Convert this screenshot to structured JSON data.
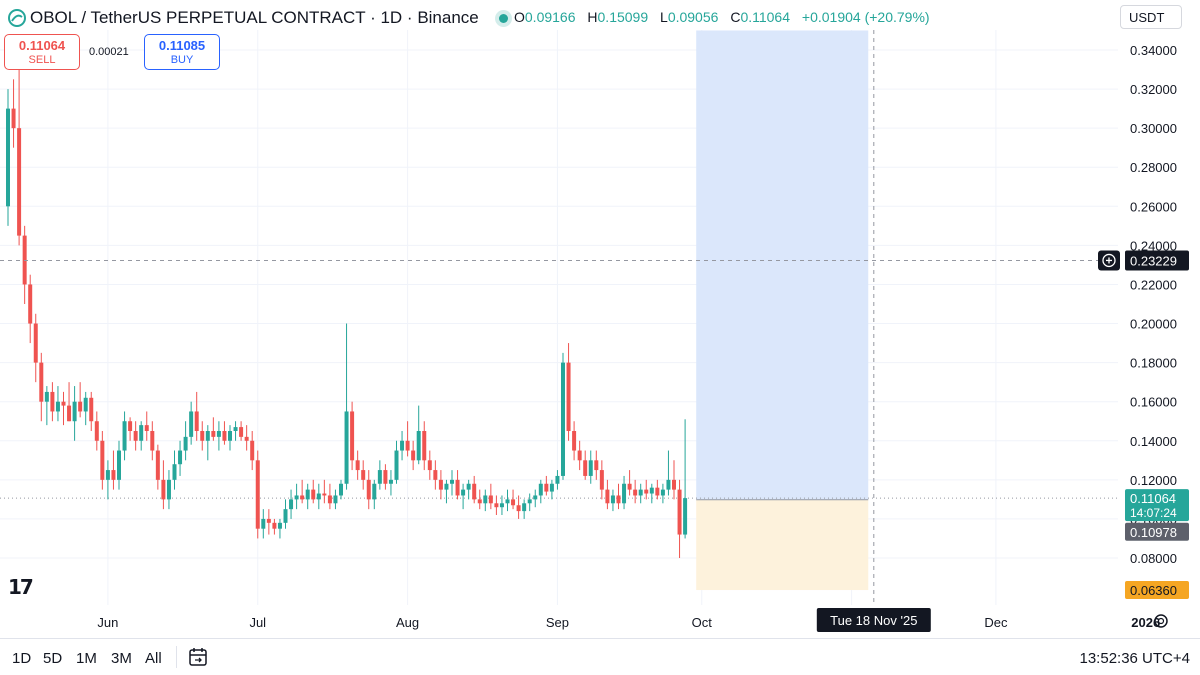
{
  "header": {
    "title": "OBOL / TetherUS PERPETUAL CONTRACT · 1D · Binance",
    "ohlc": {
      "o_label": "O",
      "o": "0.09166",
      "h_label": "H",
      "h": "0.15099",
      "l_label": "L",
      "l": "0.09056",
      "c_label": "C",
      "c": "0.11064",
      "change": "+0.01904 (+20.79%)"
    },
    "currency": "USDT"
  },
  "trade": {
    "sell_price": "0.11064",
    "sell_label": "SELL",
    "spread": "0.00021",
    "buy_price": "0.11085",
    "buy_label": "BUY"
  },
  "timeframes": [
    "1D",
    "5D",
    "1M",
    "3M",
    "All"
  ],
  "clock": "13:52:36 UTC+4",
  "colors": {
    "up": "#26a69a",
    "down": "#ef5350",
    "profit_zone": "#dbe7fb",
    "loss_zone": "#fdf2dc",
    "brand": "#131722"
  },
  "chart_data": {
    "type": "candlestick",
    "ylim": [
      0.06,
      0.35
    ],
    "y_ticks": [
      "0.08000",
      "0.10000",
      "0.12000",
      "0.14000",
      "0.16000",
      "0.18000",
      "0.20000",
      "0.22000",
      "0.24000",
      "0.26000",
      "0.28000",
      "0.30000",
      "0.32000",
      "0.34000"
    ],
    "x_ticks": [
      {
        "label": "Jun",
        "i": 18
      },
      {
        "label": "Jul",
        "i": 45
      },
      {
        "label": "Aug",
        "i": 72
      },
      {
        "label": "Sep",
        "i": 99
      },
      {
        "label": "Oct",
        "i": 125
      },
      {
        "label": "Nov",
        "i": 152
      },
      {
        "label": "Dec",
        "i": 178
      },
      {
        "label": "2026",
        "i": 205
      }
    ],
    "candles": [
      [
        0.26,
        0.32,
        0.25,
        0.31
      ],
      [
        0.31,
        0.325,
        0.29,
        0.3
      ],
      [
        0.3,
        0.33,
        0.24,
        0.245
      ],
      [
        0.245,
        0.25,
        0.21,
        0.22
      ],
      [
        0.22,
        0.225,
        0.19,
        0.2
      ],
      [
        0.2,
        0.205,
        0.17,
        0.18
      ],
      [
        0.18,
        0.185,
        0.15,
        0.16
      ],
      [
        0.16,
        0.168,
        0.148,
        0.165
      ],
      [
        0.165,
        0.17,
        0.15,
        0.155
      ],
      [
        0.155,
        0.168,
        0.15,
        0.16
      ],
      [
        0.16,
        0.165,
        0.148,
        0.158
      ],
      [
        0.158,
        0.17,
        0.15,
        0.15
      ],
      [
        0.15,
        0.168,
        0.14,
        0.16
      ],
      [
        0.16,
        0.17,
        0.152,
        0.155
      ],
      [
        0.155,
        0.165,
        0.148,
        0.162
      ],
      [
        0.162,
        0.165,
        0.145,
        0.15
      ],
      [
        0.15,
        0.155,
        0.135,
        0.14
      ],
      [
        0.14,
        0.145,
        0.115,
        0.12
      ],
      [
        0.12,
        0.13,
        0.11,
        0.125
      ],
      [
        0.125,
        0.135,
        0.115,
        0.12
      ],
      [
        0.12,
        0.14,
        0.115,
        0.135
      ],
      [
        0.135,
        0.155,
        0.13,
        0.15
      ],
      [
        0.15,
        0.152,
        0.14,
        0.145
      ],
      [
        0.145,
        0.15,
        0.135,
        0.14
      ],
      [
        0.14,
        0.15,
        0.135,
        0.148
      ],
      [
        0.148,
        0.155,
        0.14,
        0.145
      ],
      [
        0.145,
        0.15,
        0.13,
        0.135
      ],
      [
        0.135,
        0.138,
        0.115,
        0.12
      ],
      [
        0.12,
        0.13,
        0.105,
        0.11
      ],
      [
        0.11,
        0.125,
        0.105,
        0.12
      ],
      [
        0.12,
        0.135,
        0.115,
        0.128
      ],
      [
        0.128,
        0.14,
        0.122,
        0.135
      ],
      [
        0.135,
        0.15,
        0.13,
        0.142
      ],
      [
        0.142,
        0.16,
        0.138,
        0.155
      ],
      [
        0.155,
        0.165,
        0.14,
        0.145
      ],
      [
        0.145,
        0.15,
        0.135,
        0.14
      ],
      [
        0.14,
        0.148,
        0.13,
        0.145
      ],
      [
        0.145,
        0.152,
        0.14,
        0.142
      ],
      [
        0.142,
        0.15,
        0.135,
        0.145
      ],
      [
        0.145,
        0.15,
        0.138,
        0.14
      ],
      [
        0.14,
        0.148,
        0.135,
        0.145
      ],
      [
        0.145,
        0.15,
        0.14,
        0.147
      ],
      [
        0.147,
        0.15,
        0.14,
        0.142
      ],
      [
        0.142,
        0.148,
        0.135,
        0.14
      ],
      [
        0.14,
        0.145,
        0.125,
        0.13
      ],
      [
        0.13,
        0.135,
        0.09,
        0.095
      ],
      [
        0.095,
        0.105,
        0.09,
        0.1
      ],
      [
        0.1,
        0.105,
        0.092,
        0.098
      ],
      [
        0.098,
        0.1,
        0.092,
        0.095
      ],
      [
        0.095,
        0.1,
        0.09,
        0.098
      ],
      [
        0.098,
        0.11,
        0.095,
        0.105
      ],
      [
        0.105,
        0.115,
        0.1,
        0.11
      ],
      [
        0.11,
        0.118,
        0.105,
        0.112
      ],
      [
        0.112,
        0.12,
        0.108,
        0.11
      ],
      [
        0.11,
        0.118,
        0.105,
        0.115
      ],
      [
        0.115,
        0.12,
        0.108,
        0.11
      ],
      [
        0.11,
        0.118,
        0.105,
        0.113
      ],
      [
        0.113,
        0.12,
        0.108,
        0.112
      ],
      [
        0.112,
        0.118,
        0.105,
        0.108
      ],
      [
        0.108,
        0.115,
        0.105,
        0.112
      ],
      [
        0.112,
        0.12,
        0.11,
        0.118
      ],
      [
        0.118,
        0.2,
        0.115,
        0.155
      ],
      [
        0.155,
        0.16,
        0.125,
        0.13
      ],
      [
        0.13,
        0.135,
        0.12,
        0.125
      ],
      [
        0.125,
        0.13,
        0.115,
        0.12
      ],
      [
        0.12,
        0.125,
        0.105,
        0.11
      ],
      [
        0.11,
        0.12,
        0.105,
        0.118
      ],
      [
        0.118,
        0.13,
        0.115,
        0.125
      ],
      [
        0.125,
        0.128,
        0.115,
        0.118
      ],
      [
        0.118,
        0.125,
        0.112,
        0.12
      ],
      [
        0.12,
        0.14,
        0.118,
        0.135
      ],
      [
        0.135,
        0.145,
        0.13,
        0.14
      ],
      [
        0.14,
        0.15,
        0.132,
        0.135
      ],
      [
        0.135,
        0.14,
        0.125,
        0.13
      ],
      [
        0.13,
        0.158,
        0.128,
        0.145
      ],
      [
        0.145,
        0.15,
        0.125,
        0.13
      ],
      [
        0.13,
        0.135,
        0.12,
        0.125
      ],
      [
        0.125,
        0.13,
        0.115,
        0.12
      ],
      [
        0.12,
        0.125,
        0.11,
        0.115
      ],
      [
        0.115,
        0.12,
        0.108,
        0.118
      ],
      [
        0.118,
        0.125,
        0.112,
        0.12
      ],
      [
        0.12,
        0.125,
        0.11,
        0.112
      ],
      [
        0.112,
        0.118,
        0.105,
        0.115
      ],
      [
        0.115,
        0.12,
        0.11,
        0.118
      ],
      [
        0.118,
        0.122,
        0.108,
        0.11
      ],
      [
        0.11,
        0.115,
        0.105,
        0.108
      ],
      [
        0.108,
        0.115,
        0.104,
        0.112
      ],
      [
        0.112,
        0.118,
        0.105,
        0.108
      ],
      [
        0.108,
        0.112,
        0.102,
        0.106
      ],
      [
        0.106,
        0.112,
        0.102,
        0.108
      ],
      [
        0.108,
        0.115,
        0.104,
        0.11
      ],
      [
        0.11,
        0.115,
        0.105,
        0.107
      ],
      [
        0.107,
        0.112,
        0.1,
        0.104
      ],
      [
        0.104,
        0.11,
        0.1,
        0.108
      ],
      [
        0.108,
        0.113,
        0.104,
        0.11
      ],
      [
        0.11,
        0.115,
        0.106,
        0.112
      ],
      [
        0.112,
        0.12,
        0.108,
        0.118
      ],
      [
        0.118,
        0.122,
        0.112,
        0.114
      ],
      [
        0.114,
        0.12,
        0.11,
        0.118
      ],
      [
        0.118,
        0.125,
        0.115,
        0.122
      ],
      [
        0.122,
        0.185,
        0.12,
        0.18
      ],
      [
        0.18,
        0.19,
        0.14,
        0.145
      ],
      [
        0.145,
        0.15,
        0.13,
        0.135
      ],
      [
        0.135,
        0.14,
        0.125,
        0.13
      ],
      [
        0.13,
        0.135,
        0.12,
        0.122
      ],
      [
        0.122,
        0.135,
        0.118,
        0.13
      ],
      [
        0.13,
        0.135,
        0.12,
        0.125
      ],
      [
        0.125,
        0.13,
        0.11,
        0.115
      ],
      [
        0.115,
        0.12,
        0.105,
        0.108
      ],
      [
        0.108,
        0.115,
        0.104,
        0.112
      ],
      [
        0.112,
        0.118,
        0.105,
        0.108
      ],
      [
        0.108,
        0.122,
        0.105,
        0.118
      ],
      [
        0.118,
        0.125,
        0.112,
        0.115
      ],
      [
        0.115,
        0.12,
        0.108,
        0.112
      ],
      [
        0.112,
        0.118,
        0.108,
        0.115
      ],
      [
        0.115,
        0.12,
        0.11,
        0.113
      ],
      [
        0.113,
        0.118,
        0.108,
        0.116
      ],
      [
        0.116,
        0.12,
        0.11,
        0.112
      ],
      [
        0.112,
        0.118,
        0.108,
        0.115
      ],
      [
        0.115,
        0.135,
        0.112,
        0.12
      ],
      [
        0.12,
        0.13,
        0.11,
        0.115
      ],
      [
        0.115,
        0.12,
        0.08,
        0.092
      ],
      [
        0.092,
        0.151,
        0.09,
        0.11064
      ]
    ],
    "current_price": "0.11064",
    "countdown": "14:07:24",
    "position": {
      "start_i": 124,
      "end_i": 155,
      "entry": 0.1098,
      "target": 0.35,
      "stop": 0.0636,
      "entry_label": "0.10978",
      "stop_label": "0.06360"
    },
    "crosshair": {
      "price": 0.23229,
      "price_label": "0.23229",
      "i": 156,
      "date_label": "Tue 18 Nov '25"
    }
  }
}
